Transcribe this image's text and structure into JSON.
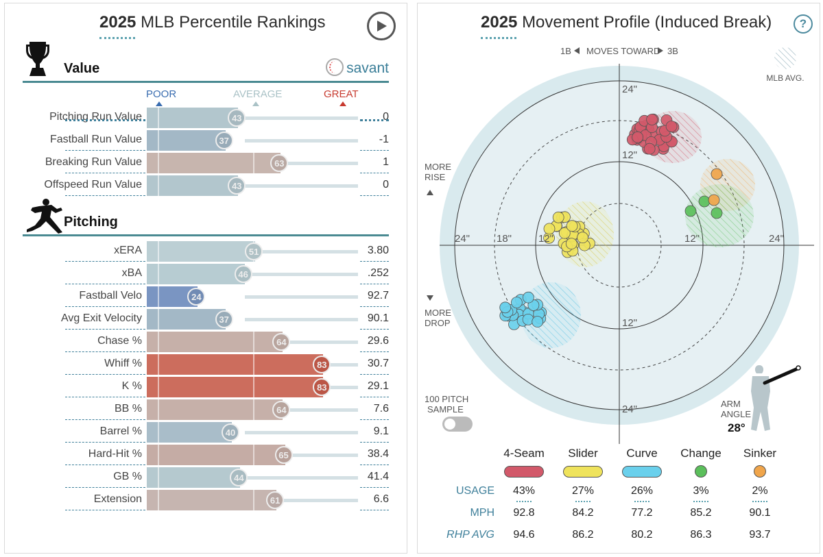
{
  "left": {
    "title_year": "2025",
    "title_rest": "MLB Percentile Rankings",
    "value_section": {
      "label": "Value"
    },
    "pitching_section": {
      "label": "Pitching"
    },
    "savant_label": "savant",
    "scale": {
      "poor": "POOR",
      "average": "AVERAGE",
      "great": "GREAT"
    },
    "value_rows": [
      {
        "name": "Pitching Run Value",
        "pct": 43,
        "value": "0",
        "color": "#b2c6cd"
      },
      {
        "name": "Fastball Run Value",
        "pct": 37,
        "value": "-1",
        "color": "#a3b8c6"
      },
      {
        "name": "Breaking Run Value",
        "pct": 63,
        "value": "1",
        "color": "#c7b5ae"
      },
      {
        "name": "Offspeed Run Value",
        "pct": 43,
        "value": "0",
        "color": "#b2c6cd"
      }
    ],
    "pitching_rows": [
      {
        "name": "xERA",
        "pct": 51,
        "value": "3.80",
        "color": "#bccfd4"
      },
      {
        "name": "xBA",
        "pct": 46,
        "value": ".252",
        "color": "#b7ccd2"
      },
      {
        "name": "Fastball Velo",
        "pct": 24,
        "value": "92.7",
        "color": "#7a95c2"
      },
      {
        "name": "Avg Exit Velocity",
        "pct": 37,
        "value": "90.1",
        "color": "#a3b8c6"
      },
      {
        "name": "Chase %",
        "pct": 64,
        "value": "29.6",
        "color": "#c6b0a9"
      },
      {
        "name": "Whiff %",
        "pct": 83,
        "value": "30.7",
        "color": "#cc6d5d"
      },
      {
        "name": "K %",
        "pct": 83,
        "value": "29.1",
        "color": "#cc6d5d"
      },
      {
        "name": "BB %",
        "pct": 64,
        "value": "7.6",
        "color": "#c6b0a9"
      },
      {
        "name": "Barrel %",
        "pct": 40,
        "value": "9.1",
        "color": "#a9bdc9"
      },
      {
        "name": "Hard-Hit %",
        "pct": 65,
        "value": "38.4",
        "color": "#c5aca5"
      },
      {
        "name": "GB %",
        "pct": 44,
        "value": "41.4",
        "color": "#b5c9cf"
      },
      {
        "name": "Extension",
        "pct": 61,
        "value": "6.6",
        "color": "#c6b5b0"
      }
    ]
  },
  "right": {
    "title_year": "2025",
    "title_rest": "Movement Profile (Induced Break)",
    "help": "?",
    "moves_toward": {
      "left": "1B",
      "center": "MOVES TOWARD",
      "right": "3B"
    },
    "mlb_avg_label": "MLB AVG.",
    "more_rise": [
      "MORE",
      "RISE"
    ],
    "more_drop": [
      "MORE",
      "DROP"
    ],
    "ring_labels": {
      "top24": "24\"",
      "top12": "12\"",
      "bottom12": "12\"",
      "bottom24": "24\"",
      "left24": "24\"",
      "left18": "18\"",
      "left12": "12\"",
      "right12": "12\"",
      "right24": "24\""
    },
    "pitch_sample": [
      "100 PITCH",
      "SAMPLE"
    ],
    "arm_angle_label": [
      "ARM",
      "ANGLE"
    ],
    "arm_angle_value": "28°",
    "table": {
      "usage_label": "USAGE",
      "mph_label": "MPH",
      "rhp_label": "RHP AVG",
      "pitches": [
        {
          "name": "4-Seam",
          "color": "#d2596a",
          "usage": "43%",
          "mph": "92.8",
          "rhp": "94.6",
          "shape": "pill"
        },
        {
          "name": "Slider",
          "color": "#efe35c",
          "usage": "27%",
          "mph": "84.2",
          "rhp": "86.2",
          "shape": "pill"
        },
        {
          "name": "Curve",
          "color": "#6ad0ec",
          "usage": "26%",
          "mph": "77.2",
          "rhp": "80.2",
          "shape": "pill"
        },
        {
          "name": "Change",
          "color": "#5bbf5b",
          "usage": "3%",
          "mph": "85.2",
          "rhp": "86.3",
          "shape": "dot"
        },
        {
          "name": "Sinker",
          "color": "#f0a54b",
          "usage": "2%",
          "mph": "90.1",
          "rhp": "93.7",
          "shape": "dot"
        }
      ]
    }
  }
}
